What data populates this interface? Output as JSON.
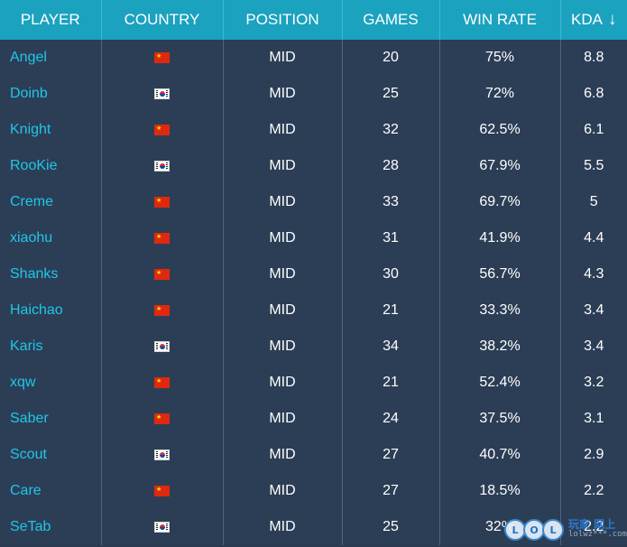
{
  "table": {
    "headers": [
      "PLAYER",
      "COUNTRY",
      "POSITION",
      "GAMES",
      "WIN RATE",
      "KDA"
    ],
    "sort_indicator": "↓",
    "rows": [
      {
        "player": "Angel",
        "country": "cn",
        "position": "MID",
        "games": "20",
        "win_rate": "75%",
        "kda": "8.8"
      },
      {
        "player": "Doinb",
        "country": "kr",
        "position": "MID",
        "games": "25",
        "win_rate": "72%",
        "kda": "6.8"
      },
      {
        "player": "Knight",
        "country": "cn",
        "position": "MID",
        "games": "32",
        "win_rate": "62.5%",
        "kda": "6.1"
      },
      {
        "player": "RooKie",
        "country": "kr",
        "position": "MID",
        "games": "28",
        "win_rate": "67.9%",
        "kda": "5.5"
      },
      {
        "player": "Creme",
        "country": "cn",
        "position": "MID",
        "games": "33",
        "win_rate": "69.7%",
        "kda": "5"
      },
      {
        "player": "xiaohu",
        "country": "cn",
        "position": "MID",
        "games": "31",
        "win_rate": "41.9%",
        "kda": "4.4"
      },
      {
        "player": "Shanks",
        "country": "cn",
        "position": "MID",
        "games": "30",
        "win_rate": "56.7%",
        "kda": "4.3"
      },
      {
        "player": "Haichao",
        "country": "cn",
        "position": "MID",
        "games": "21",
        "win_rate": "33.3%",
        "kda": "3.4"
      },
      {
        "player": "Karis",
        "country": "kr",
        "position": "MID",
        "games": "34",
        "win_rate": "38.2%",
        "kda": "3.4"
      },
      {
        "player": "xqw",
        "country": "cn",
        "position": "MID",
        "games": "21",
        "win_rate": "52.4%",
        "kda": "3.2"
      },
      {
        "player": "Saber",
        "country": "cn",
        "position": "MID",
        "games": "24",
        "win_rate": "37.5%",
        "kda": "3.1"
      },
      {
        "player": "Scout",
        "country": "kr",
        "position": "MID",
        "games": "27",
        "win_rate": "40.7%",
        "kda": "2.9"
      },
      {
        "player": "Care",
        "country": "cn",
        "position": "MID",
        "games": "27",
        "win_rate": "18.5%",
        "kda": "2.2"
      },
      {
        "player": "SeTab",
        "country": "kr",
        "position": "MID",
        "games": "25",
        "win_rate": "32%",
        "kda": "2.2"
      }
    ]
  },
  "icons": {
    "flag_cn": "china-flag-icon",
    "flag_kr": "korea-flag-icon",
    "sort": "sort-down-arrow-icon"
  },
  "watermark": {
    "letters": [
      "L",
      "O",
      "L"
    ],
    "top_text": "玩家 网上",
    "bottom_text": "lolwz***.com"
  },
  "colors": {
    "header_bg": "#1aa2bf",
    "row_bg": "#2c3e56",
    "player_text": "#1ec7e8",
    "cell_text": "#ffffff"
  }
}
